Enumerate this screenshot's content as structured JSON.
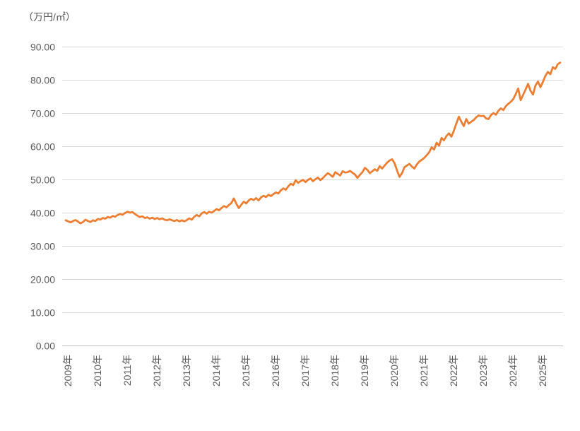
{
  "chart_data": {
    "type": "line",
    "title": "（万円/㎡）",
    "xlabel": "",
    "ylabel": "万円/㎡",
    "frequency": "monthly",
    "x_range": "2009-01 to 2025-09",
    "x_tick_labels": [
      "2009年",
      "2010年",
      "2011年",
      "2012年",
      "2013年",
      "2014年",
      "2015年",
      "2016年",
      "2017年",
      "2018年",
      "2019年",
      "2020年",
      "2021年",
      "2022年",
      "2023年",
      "2024年",
      "2025年"
    ],
    "y_tick_labels": [
      "0.00",
      "10.00",
      "20.00",
      "30.00",
      "40.00",
      "50.00",
      "60.00",
      "70.00",
      "80.00",
      "90.00"
    ],
    "ylim": [
      0,
      90
    ],
    "grid": "horizontal-only",
    "legend": "none",
    "line_color": "#ED7D31",
    "values": [
      37.8,
      37.5,
      37.2,
      37.6,
      37.9,
      37.4,
      36.9,
      37.3,
      38.0,
      37.6,
      37.3,
      37.8,
      37.6,
      38.2,
      38.0,
      38.5,
      38.3,
      38.8,
      38.6,
      39.1,
      38.9,
      39.4,
      39.7,
      39.5,
      40.0,
      40.4,
      40.1,
      40.3,
      39.7,
      39.2,
      38.8,
      39.0,
      38.5,
      38.7,
      38.3,
      38.6,
      38.2,
      38.5,
      38.1,
      38.4,
      38.0,
      37.8,
      38.1,
      37.8,
      37.6,
      37.9,
      37.5,
      37.8,
      37.5,
      37.9,
      38.4,
      38.0,
      38.9,
      39.4,
      39.0,
      39.9,
      40.3,
      39.8,
      40.4,
      40.1,
      40.6,
      41.2,
      40.8,
      41.5,
      42.1,
      41.7,
      42.4,
      43.0,
      44.4,
      42.8,
      41.5,
      42.5,
      43.4,
      42.9,
      43.8,
      44.3,
      43.9,
      44.5,
      43.8,
      44.7,
      45.2,
      44.8,
      45.5,
      45.1,
      45.7,
      46.2,
      45.9,
      46.8,
      47.4,
      47.0,
      48.0,
      48.8,
      48.4,
      49.9,
      49.1,
      49.6,
      50.0,
      49.3,
      50.0,
      50.4,
      49.6,
      50.2,
      50.7,
      49.9,
      50.5,
      51.3,
      52.0,
      51.5,
      50.9,
      52.3,
      51.8,
      51.3,
      52.6,
      52.2,
      52.3,
      52.7,
      52.1,
      51.6,
      50.6,
      51.5,
      52.3,
      53.6,
      53.0,
      52.0,
      52.6,
      53.2,
      52.7,
      54.1,
      53.4,
      54.3,
      55.2,
      55.8,
      56.2,
      55.0,
      52.8,
      50.9,
      52.0,
      53.8,
      54.3,
      54.8,
      54.0,
      53.4,
      54.6,
      55.5,
      56.0,
      56.6,
      57.4,
      58.3,
      59.8,
      59.1,
      61.2,
      60.3,
      62.6,
      61.9,
      63.2,
      64.0,
      63.0,
      64.8,
      67.0,
      69.0,
      67.5,
      66.2,
      68.3,
      66.9,
      67.5,
      68.0,
      68.8,
      69.4,
      69.2,
      69.3,
      68.5,
      68.3,
      69.5,
      70.1,
      69.6,
      70.8,
      71.5,
      71.0,
      72.2,
      72.9,
      73.5,
      74.3,
      75.8,
      77.5,
      74.0,
      75.6,
      77.2,
      78.9,
      76.8,
      75.7,
      78.4,
      79.6,
      77.9,
      79.5,
      81.3,
      82.5,
      81.8,
      83.9,
      83.4,
      84.8,
      85.3
    ]
  },
  "colors": {
    "line": "#ED7D31",
    "gridline": "#D9D9D9",
    "axis_line": "#BFBFBF",
    "label_text": "#595959",
    "background": "#FFFFFF"
  }
}
